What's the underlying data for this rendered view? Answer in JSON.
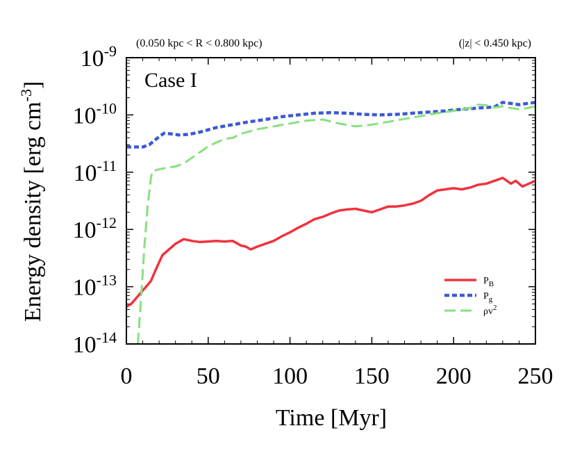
{
  "chart_data": {
    "type": "line",
    "title_left": "(0.050 kpc < R < 0.800 kpc)",
    "title_right": "(|z| < 0.450 kpc)",
    "annotation": "Case I",
    "xlabel": "Time [Myr]",
    "ylabel": {
      "prefix": "Energy density [erg cm",
      "sup": "-3",
      "suffix": "]"
    },
    "xlim": [
      0,
      250
    ],
    "ylim_log10": [
      -14,
      -9
    ],
    "yscale": "log",
    "x_ticks": [
      {
        "value": 0,
        "label": "0"
      },
      {
        "value": 50,
        "label": "50"
      },
      {
        "value": 100,
        "label": "100"
      },
      {
        "value": 150,
        "label": "150"
      },
      {
        "value": 200,
        "label": "200"
      },
      {
        "value": 250,
        "label": "250"
      }
    ],
    "y_ticks": [
      {
        "exp": -9,
        "base": "10",
        "sup": "-9"
      },
      {
        "exp": -10,
        "base": "10",
        "sup": "-10"
      },
      {
        "exp": -11,
        "base": "10",
        "sup": "-11"
      },
      {
        "exp": -12,
        "base": "10",
        "sup": "-12"
      },
      {
        "exp": -13,
        "base": "10",
        "sup": "-13"
      },
      {
        "exp": -14,
        "base": "10",
        "sup": "-14"
      }
    ],
    "legend_position": "bottom-right",
    "series": [
      {
        "key": "PB",
        "legend_base": "P",
        "legend_sub": "B",
        "legend_sup": "",
        "color": "#f0323c",
        "style": "solid",
        "x": [
          0,
          3,
          6,
          9,
          12,
          15,
          18,
          22,
          26,
          30,
          35,
          40,
          45,
          50,
          55,
          60,
          65,
          70,
          73,
          76,
          80,
          85,
          90,
          95,
          100,
          105,
          110,
          115,
          120,
          125,
          130,
          135,
          140,
          145,
          150,
          155,
          160,
          165,
          170,
          175,
          180,
          185,
          190,
          195,
          200,
          205,
          210,
          215,
          220,
          225,
          230,
          235,
          238,
          242,
          246,
          250
        ],
        "log10y": [
          -13.35,
          -13.3,
          -13.2,
          -13.1,
          -13.0,
          -12.9,
          -12.7,
          -12.45,
          -12.35,
          -12.25,
          -12.17,
          -12.2,
          -12.22,
          -12.21,
          -12.2,
          -12.21,
          -12.2,
          -12.28,
          -12.3,
          -12.35,
          -12.3,
          -12.25,
          -12.2,
          -12.12,
          -12.05,
          -11.97,
          -11.9,
          -11.82,
          -11.78,
          -11.72,
          -11.67,
          -11.65,
          -11.64,
          -11.67,
          -11.7,
          -11.65,
          -11.6,
          -11.6,
          -11.58,
          -11.55,
          -11.5,
          -11.4,
          -11.32,
          -11.3,
          -11.28,
          -11.3,
          -11.27,
          -11.22,
          -11.2,
          -11.15,
          -11.1,
          -11.2,
          -11.15,
          -11.25,
          -11.2,
          -11.15
        ]
      },
      {
        "key": "Pg",
        "legend_base": "P",
        "legend_sub": "g",
        "legend_sup": "",
        "color": "#3c5ad2",
        "style": "dotted",
        "x": [
          0,
          5,
          10,
          14,
          17,
          20,
          23,
          27,
          32,
          38,
          45,
          55,
          65,
          75,
          85,
          95,
          105,
          115,
          125,
          135,
          145,
          155,
          165,
          175,
          185,
          195,
          205,
          215,
          225,
          230,
          235,
          240,
          245,
          250
        ],
        "log10y": [
          -10.56,
          -10.56,
          -10.56,
          -10.52,
          -10.45,
          -10.38,
          -10.32,
          -10.33,
          -10.35,
          -10.34,
          -10.3,
          -10.22,
          -10.17,
          -10.12,
          -10.08,
          -10.03,
          -10.0,
          -9.97,
          -9.96,
          -9.97,
          -9.99,
          -10.0,
          -9.99,
          -9.97,
          -9.95,
          -9.93,
          -9.9,
          -9.88,
          -9.86,
          -9.78,
          -9.8,
          -9.82,
          -9.8,
          -9.78
        ]
      },
      {
        "key": "rhov2",
        "legend_base": "ρv",
        "legend_sub": "",
        "legend_sup": "2",
        "color": "#88e080",
        "style": "dashed",
        "x": [
          7,
          9,
          11,
          13,
          15,
          16,
          20,
          25,
          30,
          35,
          40,
          45,
          50,
          55,
          60,
          65,
          70,
          80,
          90,
          100,
          110,
          120,
          130,
          140,
          150,
          160,
          170,
          180,
          190,
          200,
          210,
          215,
          220,
          225,
          230,
          235,
          240,
          245,
          250
        ],
        "log10y": [
          -14.0,
          -13.2,
          -12.3,
          -11.6,
          -11.1,
          -10.98,
          -10.95,
          -10.92,
          -10.9,
          -10.85,
          -10.75,
          -10.65,
          -10.55,
          -10.48,
          -10.42,
          -10.4,
          -10.33,
          -10.25,
          -10.2,
          -10.15,
          -10.1,
          -10.08,
          -10.15,
          -10.2,
          -10.17,
          -10.12,
          -10.07,
          -10.02,
          -9.97,
          -9.93,
          -9.88,
          -9.82,
          -9.83,
          -9.87,
          -9.85,
          -9.88,
          -9.9,
          -9.88,
          -9.85
        ]
      }
    ]
  }
}
